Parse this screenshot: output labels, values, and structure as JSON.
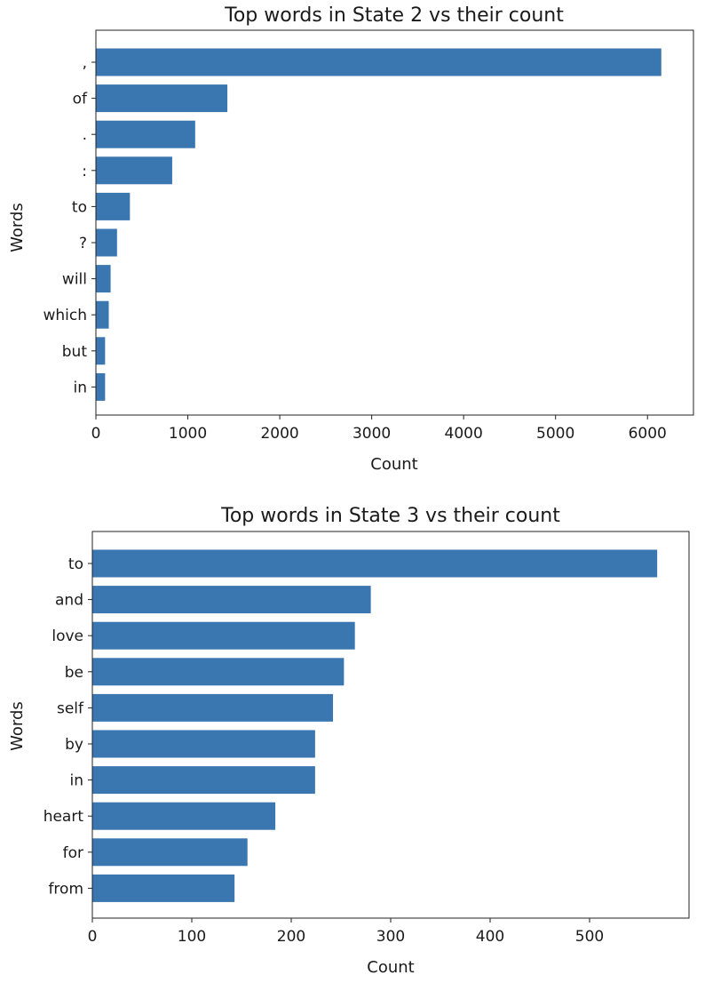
{
  "colors": {
    "bar": "#3a76b0",
    "axis": "#222222",
    "text": "#1a1a1a",
    "background": "#ffffff"
  },
  "chart_data": [
    {
      "type": "bar",
      "orientation": "horizontal",
      "title": "Top words in State 2 vs their count",
      "xlabel": "Count",
      "ylabel": "Words",
      "categories": [
        ",",
        "of",
        ".",
        ":",
        "to",
        "?",
        "will",
        "which",
        "but",
        "in"
      ],
      "values": [
        6150,
        1430,
        1080,
        830,
        370,
        230,
        160,
        140,
        100,
        100
      ],
      "xlim": [
        0,
        6500
      ],
      "xticks": [
        0,
        1000,
        2000,
        3000,
        4000,
        5000,
        6000
      ],
      "grid": false,
      "legend": "none"
    },
    {
      "type": "bar",
      "orientation": "horizontal",
      "title": "Top words in State 3 vs their count",
      "xlabel": "Count",
      "ylabel": "Words",
      "categories": [
        "to",
        "and",
        "love",
        "be",
        "self",
        "by",
        "in",
        "heart",
        "for",
        "from"
      ],
      "values": [
        568,
        280,
        264,
        253,
        242,
        224,
        224,
        184,
        156,
        143
      ],
      "xlim": [
        0,
        600
      ],
      "xticks": [
        0,
        100,
        200,
        300,
        400,
        500
      ],
      "grid": false,
      "legend": "none"
    }
  ]
}
